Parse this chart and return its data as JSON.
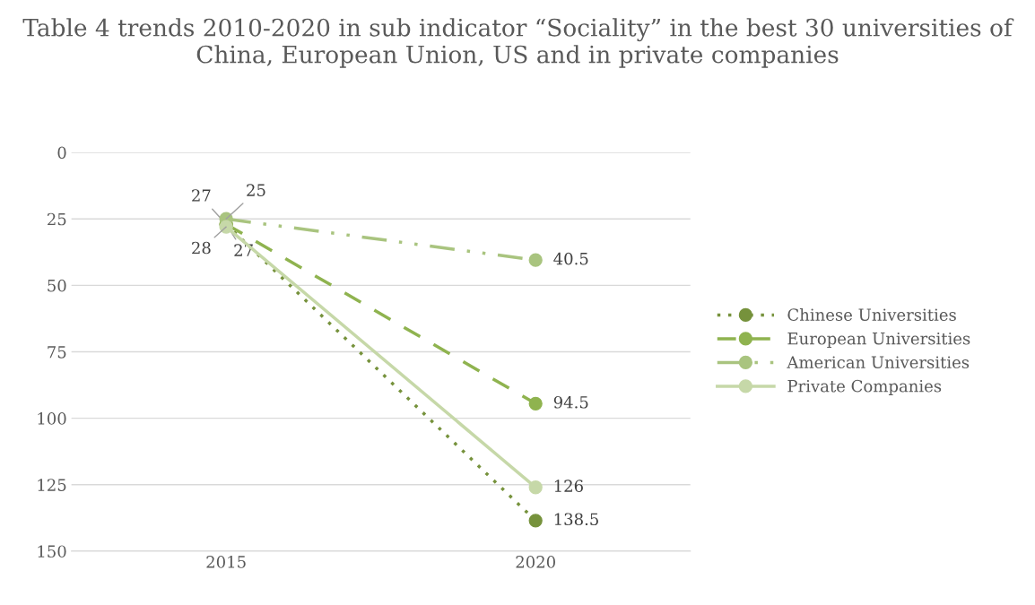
{
  "chart_data": {
    "type": "line",
    "title": "Table 4 trends 2010-2020 in sub indicator “Sociality” in the best 30 universities of China, European Union, US and in private companies",
    "categories": [
      "2015",
      "2020"
    ],
    "series": [
      {
        "name": "Chinese Universities",
        "color": "#76923c",
        "line_style": "dotted",
        "values": [
          27,
          138.5
        ]
      },
      {
        "name": "European Universities",
        "color": "#8fb34f",
        "line_style": "dashed",
        "values": [
          27,
          94.5
        ]
      },
      {
        "name": "American Universities",
        "color": "#a9c47f",
        "line_style": "dashdot",
        "values": [
          25,
          40.5
        ]
      },
      {
        "name": "Private Companies",
        "color": "#c6d8a8",
        "line_style": "solid",
        "values": [
          28,
          126
        ]
      }
    ],
    "ylim": [
      150,
      0
    ],
    "yticks": [
      0,
      25,
      50,
      75,
      100,
      125,
      150
    ],
    "grid": "y",
    "legend": "right",
    "marker": "circle",
    "data_labels": true
  }
}
